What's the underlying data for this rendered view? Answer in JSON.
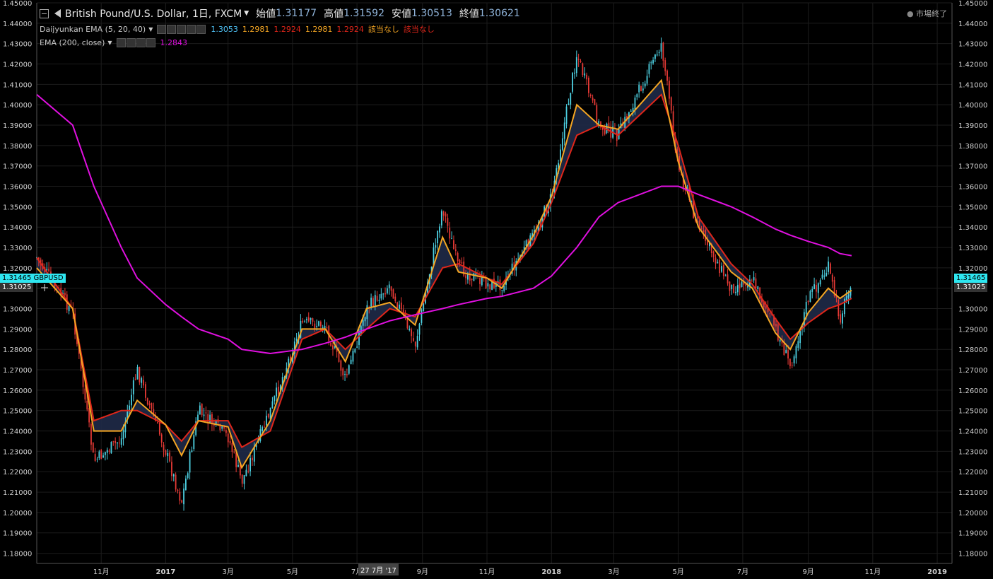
{
  "header": {
    "symbol": "British Pound/U.S. Dollar, 1日, FXCM",
    "open_label": "始値",
    "open": "1.31177",
    "high_label": "高値",
    "high": "1.31592",
    "low_label": "安値",
    "low": "1.30513",
    "close_label": "終値",
    "close": "1.30621",
    "market_status": "市場終了"
  },
  "indicators": {
    "daijyunkan": {
      "label": "Daijyunkan EMA (5, 20, 40)",
      "values": [
        "1.3053",
        "1.2981",
        "1.2924",
        "1.2981",
        "1.2924",
        "該当なし",
        "該当なし"
      ]
    },
    "ema200": {
      "label": "EMA (200, close)",
      "value": "1.2843"
    }
  },
  "price_tags": {
    "current": "1.31465",
    "symbol": "GBPUSD",
    "crosshair": "1.31025",
    "crosshair_date": "27 7月 '17"
  },
  "colors": {
    "background": "#000000",
    "grid": "#1c1c1c",
    "candle_up": "#4dd0e1",
    "candle_down": "#e53935",
    "ema5": "#f5a623",
    "ema20": "#e0261a",
    "ema200": "#e010e0",
    "cloud": "#1f2a48",
    "price_tag": "#2ee6f0"
  },
  "chart_data": {
    "type": "line",
    "title": "British Pound/U.S. Dollar, 1日, FXCM",
    "ylim": [
      1.175,
      1.45
    ],
    "y_ticks": [
      "1.18000",
      "1.19000",
      "1.20000",
      "1.21000",
      "1.22000",
      "1.23000",
      "1.24000",
      "1.25000",
      "1.26000",
      "1.27000",
      "1.28000",
      "1.29000",
      "1.30000",
      "1.31000",
      "1.32000",
      "1.33000",
      "1.34000",
      "1.35000",
      "1.36000",
      "1.37000",
      "1.38000",
      "1.39000",
      "1.40000",
      "1.41000",
      "1.42000",
      "1.43000",
      "1.44000",
      "1.45000"
    ],
    "x_ticks": [
      "11月",
      "2017",
      "3月",
      "5月",
      "7月",
      "9月",
      "11月",
      "2018",
      "3月",
      "5月",
      "7月",
      "9月",
      "11月",
      "2019"
    ],
    "dates": [
      "2016-09",
      "2016-10-05",
      "2016-10-25",
      "2016-11-20",
      "2016-12-05",
      "2017-01-01",
      "2017-01-16",
      "2017-02-01",
      "2017-03-01",
      "2017-03-14",
      "2017-04-10",
      "2017-05-10",
      "2017-06-01",
      "2017-06-20",
      "2017-07-10",
      "2017-08-01",
      "2017-08-25",
      "2017-09-20",
      "2017-10-05",
      "2017-11-01",
      "2017-11-15",
      "2017-12-15",
      "2018-01-01",
      "2018-01-25",
      "2018-02-15",
      "2018-03-05",
      "2018-04-15",
      "2018-05-01",
      "2018-05-20",
      "2018-06-20",
      "2018-07-10",
      "2018-08-01",
      "2018-08-15",
      "2018-09-01",
      "2018-09-20",
      "2018-10-01",
      "2018-10-12"
    ],
    "series": [
      {
        "name": "GBPUSD",
        "values": [
          1.325,
          1.298,
          1.225,
          1.236,
          1.27,
          1.23,
          1.205,
          1.25,
          1.237,
          1.215,
          1.25,
          1.293,
          1.292,
          1.265,
          1.3,
          1.312,
          1.282,
          1.35,
          1.32,
          1.312,
          1.312,
          1.336,
          1.355,
          1.425,
          1.39,
          1.385,
          1.43,
          1.37,
          1.34,
          1.31,
          1.315,
          1.29,
          1.272,
          1.305,
          1.32,
          1.295,
          1.315
        ]
      },
      {
        "name": "EMA 5",
        "values": [
          1.32,
          1.3,
          1.24,
          1.24,
          1.255,
          1.243,
          1.228,
          1.245,
          1.242,
          1.222,
          1.245,
          1.29,
          1.29,
          1.274,
          1.3,
          1.303,
          1.292,
          1.335,
          1.318,
          1.315,
          1.31,
          1.336,
          1.355,
          1.4,
          1.39,
          1.388,
          1.412,
          1.372,
          1.34,
          1.318,
          1.31,
          1.288,
          1.28,
          1.298,
          1.31,
          1.305,
          1.309
        ]
      },
      {
        "name": "EMA 20",
        "values": [
          1.325,
          1.3,
          1.245,
          1.25,
          1.25,
          1.243,
          1.235,
          1.245,
          1.245,
          1.232,
          1.24,
          1.285,
          1.29,
          1.28,
          1.29,
          1.3,
          1.296,
          1.32,
          1.322,
          1.315,
          1.312,
          1.332,
          1.352,
          1.385,
          1.39,
          1.385,
          1.405,
          1.38,
          1.345,
          1.322,
          1.312,
          1.295,
          1.285,
          1.293,
          1.3,
          1.302,
          1.305
        ]
      },
      {
        "name": "EMA 200",
        "values": [
          1.405,
          1.39,
          1.36,
          1.33,
          1.315,
          1.302,
          1.296,
          1.29,
          1.285,
          1.28,
          1.278,
          1.28,
          1.283,
          1.286,
          1.29,
          1.294,
          1.297,
          1.3,
          1.302,
          1.305,
          1.306,
          1.31,
          1.316,
          1.33,
          1.345,
          1.352,
          1.36,
          1.36,
          1.356,
          1.35,
          1.345,
          1.339,
          1.336,
          1.333,
          1.33,
          1.327,
          1.326
        ]
      }
    ]
  }
}
